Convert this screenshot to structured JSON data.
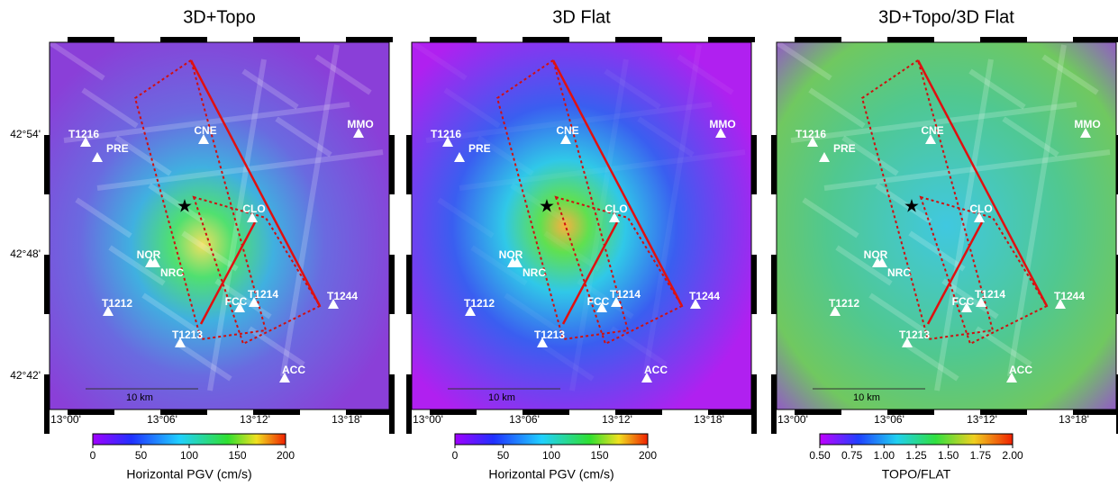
{
  "panels": [
    {
      "title": "3D+Topo",
      "colorbar": {
        "label": "Horizontal PGV (cm/s)",
        "lim": [
          0,
          200
        ],
        "ticks": [
          0,
          50,
          100,
          150,
          200
        ]
      }
    },
    {
      "title": "3D Flat",
      "colorbar": {
        "label": "Horizontal PGV (cm/s)",
        "lim": [
          0,
          200
        ],
        "ticks": [
          0,
          50,
          100,
          150,
          200
        ]
      }
    },
    {
      "title": "3D+Topo/3D Flat",
      "colorbar": {
        "label": "TOPO/FLAT",
        "lim": [
          0.5,
          2.0
        ],
        "ticks": [
          {
            "value": 0.5,
            "label": "0.50"
          },
          {
            "value": 0.75,
            "label": "0.75"
          },
          {
            "value": 1.0,
            "label": "1.00"
          },
          {
            "value": 1.25,
            "label": "1.25"
          },
          {
            "value": 1.5,
            "label": "1.50"
          },
          {
            "value": 1.75,
            "label": "1.75"
          },
          {
            "value": 2.0,
            "label": "2.00"
          }
        ]
      }
    }
  ],
  "stations": [
    "T1216",
    "PRE",
    "CNE",
    "MMO",
    "CLO",
    "NOR",
    "NRC",
    "T1212",
    "FCC",
    "T1214",
    "T1244",
    "T1213",
    "ACC"
  ],
  "lon_ticks": [
    "13°00'",
    "13°06'",
    "13°12'",
    "13°18'"
  ],
  "lat_ticks": [
    "42°54'",
    "42°48'",
    "42°42'"
  ],
  "scale_bar": "10 km"
}
